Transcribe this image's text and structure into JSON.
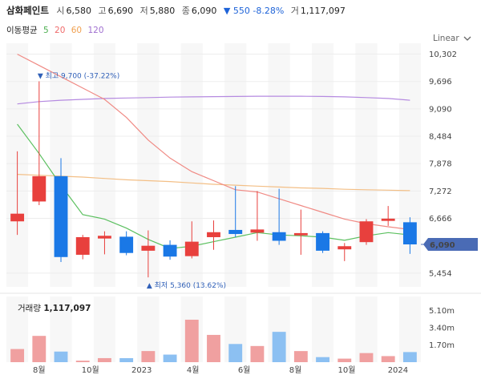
{
  "header": {
    "name": "삼화페인트",
    "open_label": "시",
    "open": "6,580",
    "high_label": "고",
    "high": "6,690",
    "low_label": "저",
    "low": "5,880",
    "close_label": "종",
    "close": "6,090",
    "change": "▼ 550 -8.28%",
    "volume_label": "거",
    "volume": "1,117,097"
  },
  "ma_legend": {
    "label": "이동평균",
    "items": [
      {
        "text": "5",
        "color": "#4caf50"
      },
      {
        "text": "20",
        "color": "#ef6b6b"
      },
      {
        "text": "60",
        "color": "#f0a050"
      },
      {
        "text": "120",
        "color": "#a070d0"
      }
    ]
  },
  "scale_button": "Linear",
  "chevron_icon": "chevron-down-icon",
  "colors": {
    "up": "#e8403d",
    "down": "#1a78e6",
    "vol_up": "#f0a0a0",
    "vol_down": "#8cc0f2",
    "ma5": "#5cc060",
    "ma20": "#f08a84",
    "ma60": "#f3bf86",
    "ma120": "#b58ae0",
    "price_tag": "#4a6bb5"
  },
  "chart_data": {
    "type": "candlestick",
    "price_ylim": [
      5150,
      10400
    ],
    "price_ticks": [
      "10,302",
      "9,696",
      "9,090",
      "8,484",
      "7,878",
      "7,272",
      "6,666",
      "5,454"
    ],
    "x_labels": [
      "8월",
      "10월",
      "2023",
      "4월",
      "6월",
      "8월",
      "10월",
      "2024"
    ],
    "current_price": "6,090",
    "current_value": 6090,
    "candles": [
      {
        "o": 6600,
        "h": 8150,
        "l": 6300,
        "c": 6770
      },
      {
        "o": 7040,
        "h": 9700,
        "l": 6960,
        "c": 7600
      },
      {
        "o": 7600,
        "h": 8000,
        "l": 5700,
        "c": 5810
      },
      {
        "o": 5860,
        "h": 6300,
        "l": 5760,
        "c": 6250
      },
      {
        "o": 6220,
        "h": 6380,
        "l": 5870,
        "c": 6280
      },
      {
        "o": 6260,
        "h": 6380,
        "l": 5850,
        "c": 5900
      },
      {
        "o": 5950,
        "h": 6400,
        "l": 5360,
        "c": 6060
      },
      {
        "o": 6080,
        "h": 6180,
        "l": 5750,
        "c": 5820
      },
      {
        "o": 5830,
        "h": 6600,
        "l": 5780,
        "c": 6150
      },
      {
        "o": 6250,
        "h": 6620,
        "l": 5970,
        "c": 6360
      },
      {
        "o": 6410,
        "h": 7380,
        "l": 6250,
        "c": 6320
      },
      {
        "o": 6350,
        "h": 7270,
        "l": 6170,
        "c": 6420
      },
      {
        "o": 6360,
        "h": 7320,
        "l": 6080,
        "c": 6170
      },
      {
        "o": 6290,
        "h": 6860,
        "l": 5860,
        "c": 6340
      },
      {
        "o": 6340,
        "h": 6380,
        "l": 5900,
        "c": 5950
      },
      {
        "o": 5980,
        "h": 6120,
        "l": 5720,
        "c": 6050
      },
      {
        "o": 6140,
        "h": 6650,
        "l": 6080,
        "c": 6600
      },
      {
        "o": 6610,
        "h": 6940,
        "l": 6500,
        "c": 6660
      },
      {
        "o": 6580,
        "h": 6690,
        "l": 5880,
        "c": 6090
      }
    ],
    "ma5": [
      8750,
      8100,
      7400,
      6750,
      6650,
      6450,
      6200,
      6000,
      6050,
      6150,
      6250,
      6350,
      6300,
      6280,
      6250,
      6180,
      6280,
      6350,
      6300
    ],
    "ma20": [
      10300,
      10050,
      9800,
      9550,
      9300,
      8900,
      8400,
      8000,
      7700,
      7500,
      7300,
      7250,
      7100,
      6950,
      6800,
      6650,
      6550,
      6480,
      6420
    ],
    "ma60": [
      7640,
      7620,
      7600,
      7580,
      7550,
      7520,
      7500,
      7480,
      7450,
      7420,
      7400,
      7380,
      7360,
      7340,
      7330,
      7310,
      7300,
      7290,
      7280
    ],
    "ma120": [
      9200,
      9250,
      9280,
      9300,
      9320,
      9330,
      9340,
      9350,
      9355,
      9360,
      9365,
      9370,
      9370,
      9370,
      9365,
      9355,
      9340,
      9320,
      9280
    ],
    "max_marker": {
      "text": "최고 9,700 (-37.22%)",
      "index": 1,
      "value": 9700
    },
    "min_marker": {
      "text": "최저 5,360 (13.62%)",
      "index": 6,
      "value": 5360
    },
    "volume": {
      "title": "거래량",
      "value_text": "1,117,097",
      "ticks": [
        "5.10m",
        "3.40m",
        "1.70m"
      ],
      "ylim": [
        0,
        6500000
      ],
      "values": [
        1300000,
        2600000,
        1050000,
        150000,
        400000,
        400000,
        1100000,
        750000,
        4200000,
        2700000,
        1800000,
        1600000,
        3000000,
        1100000,
        500000,
        350000,
        900000,
        600000,
        1000000
      ]
    }
  }
}
